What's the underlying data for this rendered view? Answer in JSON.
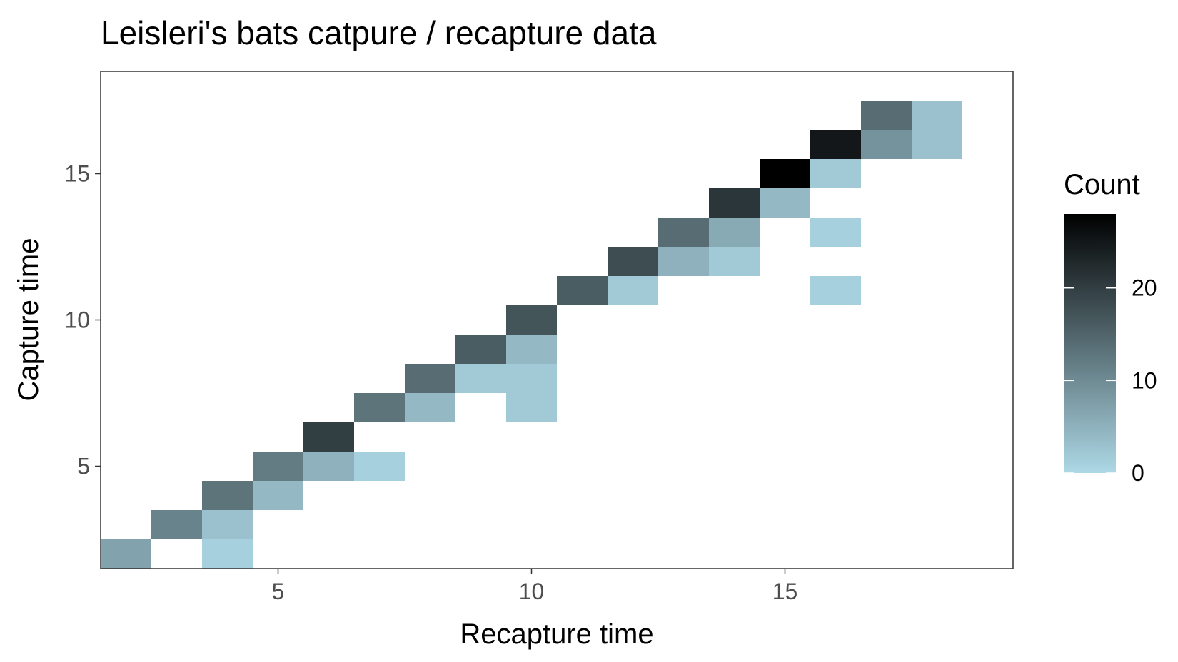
{
  "chart_data": {
    "type": "heatmap",
    "title": "Leisleri's bats catpure / recapture data",
    "xlabel": "Recapture time",
    "ylabel": "Capture time",
    "xlim": [
      1.5,
      19.5
    ],
    "ylim": [
      1.5,
      18.5
    ],
    "x_ticks": [
      5,
      10,
      15
    ],
    "y_ticks": [
      5,
      10,
      15
    ],
    "grid": false,
    "legend": {
      "title": "Count",
      "position": "right",
      "ticks": [
        0,
        10,
        20
      ],
      "range": [
        0,
        28
      ],
      "color_low": "#ADD8E6",
      "color_high": "#000000"
    },
    "cells": [
      {
        "x": 2,
        "y": 2,
        "count": 7
      },
      {
        "x": 3,
        "y": 3,
        "count": 11
      },
      {
        "x": 4,
        "y": 2,
        "count": 1
      },
      {
        "x": 4,
        "y": 3,
        "count": 3
      },
      {
        "x": 4,
        "y": 4,
        "count": 13
      },
      {
        "x": 5,
        "y": 4,
        "count": 4
      },
      {
        "x": 5,
        "y": 5,
        "count": 12
      },
      {
        "x": 6,
        "y": 5,
        "count": 5
      },
      {
        "x": 6,
        "y": 6,
        "count": 20
      },
      {
        "x": 7,
        "y": 5,
        "count": 1
      },
      {
        "x": 7,
        "y": 7,
        "count": 13
      },
      {
        "x": 8,
        "y": 7,
        "count": 4
      },
      {
        "x": 8,
        "y": 8,
        "count": 14
      },
      {
        "x": 9,
        "y": 8,
        "count": 2
      },
      {
        "x": 9,
        "y": 9,
        "count": 16
      },
      {
        "x": 10,
        "y": 7,
        "count": 2
      },
      {
        "x": 10,
        "y": 8,
        "count": 2
      },
      {
        "x": 10,
        "y": 9,
        "count": 4
      },
      {
        "x": 10,
        "y": 10,
        "count": 17
      },
      {
        "x": 11,
        "y": 11,
        "count": 16
      },
      {
        "x": 12,
        "y": 11,
        "count": 2
      },
      {
        "x": 12,
        "y": 12,
        "count": 18
      },
      {
        "x": 13,
        "y": 12,
        "count": 5
      },
      {
        "x": 13,
        "y": 13,
        "count": 14
      },
      {
        "x": 14,
        "y": 12,
        "count": 2
      },
      {
        "x": 14,
        "y": 13,
        "count": 6
      },
      {
        "x": 14,
        "y": 14,
        "count": 21
      },
      {
        "x": 15,
        "y": 14,
        "count": 4
      },
      {
        "x": 15,
        "y": 15,
        "count": 28
      },
      {
        "x": 16,
        "y": 11,
        "count": 1
      },
      {
        "x": 16,
        "y": 13,
        "count": 1
      },
      {
        "x": 16,
        "y": 15,
        "count": 2
      },
      {
        "x": 16,
        "y": 16,
        "count": 25
      },
      {
        "x": 17,
        "y": 16,
        "count": 9
      },
      {
        "x": 17,
        "y": 17,
        "count": 14
      },
      {
        "x": 18,
        "y": 16,
        "count": 3
      },
      {
        "x": 18,
        "y": 17,
        "count": 3
      }
    ]
  }
}
